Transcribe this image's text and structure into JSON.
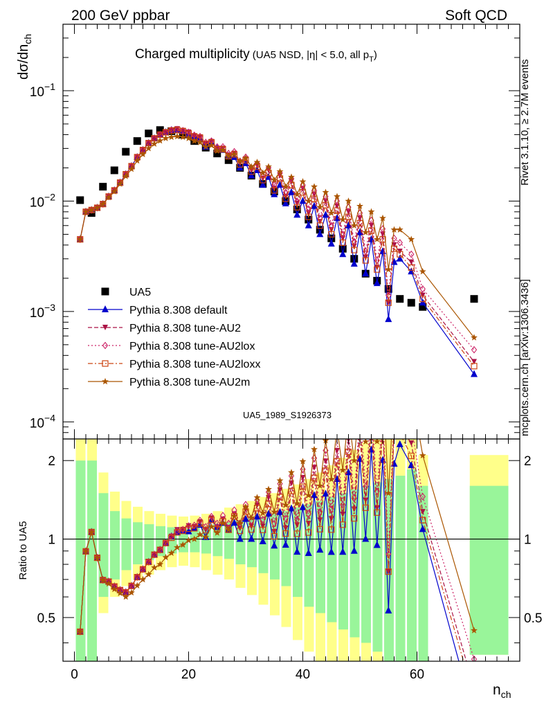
{
  "header": {
    "left": "200 GeV ppbar",
    "right": "Soft QCD",
    "side_top": "Rivet 3.1.10, ≥ 2.7M events",
    "side_bottom": "mcplots.cern.ch [arXiv:1306.3436]",
    "watermark": "UA5_1989_S1926373"
  },
  "chart_data": [
    {
      "type": "scatter",
      "title": "Charged multiplicity",
      "subtitle": "(UA5 NSD, |η| < 5.0, all p",
      "subtitle_sub": "T",
      "subtitle_end": ")",
      "ylabel": "dσ/dn",
      "ylabel_sub": "ch",
      "ylog": true,
      "ylim": [
        7e-05,
        0.4
      ],
      "xlim": [
        -2,
        78
      ],
      "y_ticks": [
        {
          "v": 0.0001,
          "base": "10",
          "exp": "−4"
        },
        {
          "v": 0.001,
          "base": "10",
          "exp": "−3"
        },
        {
          "v": 0.01,
          "base": "10",
          "exp": "−2"
        },
        {
          "v": 0.1,
          "base": "10",
          "exp": "−1"
        }
      ],
      "legend_position": "lower-left",
      "series": [
        {
          "name": "UA5",
          "color": "#000000",
          "marker": "square",
          "line": "none",
          "x": [
            1,
            3,
            5,
            7,
            9,
            11,
            13,
            15,
            17,
            19,
            21,
            23,
            25,
            27,
            29,
            31,
            33,
            35,
            37,
            39,
            41,
            43,
            45,
            47,
            49,
            51,
            53,
            55,
            57,
            59,
            61,
            70
          ],
          "y": [
            0.0102,
            0.0078,
            0.0135,
            0.019,
            0.028,
            0.035,
            0.041,
            0.044,
            0.043,
            0.04,
            0.035,
            0.0305,
            0.027,
            0.0235,
            0.02,
            0.017,
            0.0143,
            0.0122,
            0.01,
            0.0084,
            0.0068,
            0.0055,
            0.0046,
            0.0037,
            0.003,
            0.0022,
            0.0019,
            0.0016,
            0.0013,
            0.0012,
            0.0011,
            0.0013
          ]
        },
        {
          "name": "Pythia 8.308 default",
          "color": "#0000cc",
          "marker": "triangle-up",
          "line": "solid",
          "x": [
            1,
            2,
            3,
            4,
            5,
            6,
            7,
            8,
            9,
            10,
            11,
            12,
            13,
            14,
            15,
            16,
            17,
            18,
            19,
            20,
            21,
            22,
            23,
            24,
            25,
            26,
            27,
            28,
            29,
            30,
            31,
            32,
            33,
            34,
            35,
            36,
            37,
            38,
            39,
            40,
            41,
            42,
            43,
            44,
            45,
            46,
            47,
            48,
            49,
            50,
            51,
            52,
            53,
            54,
            55,
            56,
            57,
            59,
            61,
            70
          ],
          "y": [
            0.0045,
            0.008,
            0.0083,
            0.0087,
            0.0094,
            0.011,
            0.0125,
            0.0147,
            0.0175,
            0.0207,
            0.025,
            0.029,
            0.0335,
            0.037,
            0.04,
            0.042,
            0.044,
            0.044,
            0.043,
            0.04,
            0.0385,
            0.037,
            0.031,
            0.034,
            0.03,
            0.029,
            0.0255,
            0.025,
            0.02,
            0.022,
            0.017,
            0.019,
            0.014,
            0.0165,
            0.0115,
            0.014,
            0.0095,
            0.012,
            0.0075,
            0.01,
            0.006,
            0.009,
            0.005,
            0.0075,
            0.0041,
            0.007,
            0.0033,
            0.006,
            0.0027,
            0.0052,
            0.0022,
            0.0045,
            0.0018,
            0.0035,
            0.00085,
            0.0028,
            0.003,
            0.0023,
            0.0012,
            0.00027
          ]
        },
        {
          "name": "Pythia 8.308 tune-AU2",
          "color": "#aa1144",
          "marker": "triangle-down",
          "line": "dashed",
          "x": [
            1,
            2,
            3,
            4,
            5,
            6,
            7,
            8,
            9,
            10,
            11,
            12,
            13,
            14,
            15,
            16,
            17,
            18,
            19,
            20,
            21,
            22,
            23,
            24,
            25,
            26,
            27,
            28,
            29,
            30,
            31,
            32,
            33,
            34,
            35,
            36,
            37,
            38,
            39,
            40,
            41,
            42,
            43,
            44,
            45,
            46,
            47,
            48,
            49,
            50,
            51,
            52,
            53,
            54,
            55,
            56,
            57,
            59,
            61,
            70
          ],
          "y": [
            0.0045,
            0.008,
            0.0083,
            0.0087,
            0.0094,
            0.011,
            0.0125,
            0.0147,
            0.0175,
            0.0207,
            0.025,
            0.029,
            0.0335,
            0.037,
            0.04,
            0.042,
            0.044,
            0.045,
            0.0435,
            0.042,
            0.039,
            0.038,
            0.033,
            0.0345,
            0.03,
            0.03,
            0.026,
            0.027,
            0.022,
            0.024,
            0.019,
            0.021,
            0.016,
            0.019,
            0.013,
            0.017,
            0.011,
            0.015,
            0.0095,
            0.013,
            0.0078,
            0.0115,
            0.0065,
            0.01,
            0.0055,
            0.009,
            0.0046,
            0.008,
            0.0039,
            0.007,
            0.0031,
            0.006,
            0.0025,
            0.005,
            0.0012,
            0.004,
            0.0035,
            0.0028,
            0.0014,
            0.00035
          ]
        },
        {
          "name": "Pythia 8.308 tune-AU2lox",
          "color": "#cc2266",
          "marker": "diamond",
          "line": "dotted",
          "x": [
            1,
            2,
            3,
            4,
            5,
            6,
            7,
            8,
            9,
            10,
            11,
            12,
            13,
            14,
            15,
            16,
            17,
            18,
            19,
            20,
            21,
            22,
            23,
            24,
            25,
            26,
            27,
            28,
            29,
            30,
            31,
            32,
            33,
            34,
            35,
            36,
            37,
            38,
            39,
            40,
            41,
            42,
            43,
            44,
            45,
            46,
            47,
            48,
            49,
            50,
            51,
            52,
            53,
            54,
            55,
            56,
            57,
            59,
            61,
            70
          ],
          "y": [
            0.0045,
            0.008,
            0.0083,
            0.0087,
            0.0094,
            0.011,
            0.0125,
            0.0147,
            0.0175,
            0.0207,
            0.025,
            0.029,
            0.0335,
            0.037,
            0.04,
            0.042,
            0.044,
            0.0445,
            0.0435,
            0.042,
            0.0395,
            0.0385,
            0.034,
            0.035,
            0.031,
            0.031,
            0.027,
            0.028,
            0.023,
            0.025,
            0.02,
            0.022,
            0.017,
            0.02,
            0.014,
            0.018,
            0.012,
            0.016,
            0.01,
            0.014,
            0.0085,
            0.0125,
            0.007,
            0.011,
            0.006,
            0.01,
            0.005,
            0.0088,
            0.0043,
            0.0078,
            0.0035,
            0.0067,
            0.0029,
            0.0056,
            0.0014,
            0.0046,
            0.0042,
            0.0033,
            0.0016,
            0.00045
          ]
        },
        {
          "name": "Pythia 8.308 tune-AU2loxx",
          "color": "#cc4411",
          "marker": "open-square",
          "line": "dashdot",
          "x": [
            1,
            2,
            3,
            4,
            5,
            6,
            7,
            8,
            9,
            10,
            11,
            12,
            13,
            14,
            15,
            16,
            17,
            18,
            19,
            20,
            21,
            22,
            23,
            24,
            25,
            26,
            27,
            28,
            29,
            30,
            31,
            32,
            33,
            34,
            35,
            36,
            37,
            38,
            39,
            40,
            41,
            42,
            43,
            44,
            45,
            46,
            47,
            48,
            49,
            50,
            51,
            52,
            53,
            54,
            55,
            56,
            57,
            59,
            61,
            70
          ],
          "y": [
            0.0045,
            0.008,
            0.0083,
            0.0087,
            0.0094,
            0.011,
            0.0125,
            0.0147,
            0.0175,
            0.0207,
            0.025,
            0.029,
            0.0335,
            0.037,
            0.04,
            0.042,
            0.0435,
            0.044,
            0.043,
            0.041,
            0.0385,
            0.0375,
            0.033,
            0.034,
            0.0295,
            0.0295,
            0.0255,
            0.0265,
            0.0215,
            0.0235,
            0.0185,
            0.0205,
            0.0155,
            0.018,
            0.0125,
            0.016,
            0.0105,
            0.014,
            0.0088,
            0.012,
            0.0072,
            0.0105,
            0.006,
            0.0092,
            0.005,
            0.0082,
            0.0042,
            0.0072,
            0.0036,
            0.0063,
            0.0029,
            0.0054,
            0.0024,
            0.0045,
            0.0012,
            0.0037,
            0.0033,
            0.0025,
            0.0013,
            0.00032
          ]
        },
        {
          "name": "Pythia 8.308 tune-AU2m",
          "color": "#aa5500",
          "marker": "star",
          "line": "solid",
          "x": [
            1,
            2,
            3,
            4,
            5,
            6,
            7,
            8,
            9,
            10,
            11,
            12,
            13,
            14,
            15,
            16,
            17,
            18,
            19,
            20,
            21,
            22,
            23,
            24,
            25,
            26,
            27,
            28,
            29,
            30,
            31,
            32,
            33,
            34,
            35,
            36,
            37,
            38,
            39,
            40,
            41,
            42,
            43,
            44,
            45,
            46,
            47,
            48,
            49,
            50,
            51,
            52,
            53,
            54,
            55,
            56,
            57,
            59,
            61,
            70
          ],
          "y": [
            0.0045,
            0.008,
            0.0083,
            0.0087,
            0.0094,
            0.0108,
            0.0122,
            0.0143,
            0.0168,
            0.0195,
            0.0232,
            0.0265,
            0.03,
            0.033,
            0.0352,
            0.037,
            0.038,
            0.0385,
            0.038,
            0.037,
            0.035,
            0.034,
            0.031,
            0.032,
            0.0285,
            0.029,
            0.0255,
            0.0265,
            0.023,
            0.0245,
            0.0205,
            0.0225,
            0.018,
            0.0205,
            0.0155,
            0.0185,
            0.0135,
            0.0165,
            0.0115,
            0.015,
            0.01,
            0.0135,
            0.0088,
            0.012,
            0.0078,
            0.011,
            0.0068,
            0.01,
            0.006,
            0.009,
            0.0052,
            0.008,
            0.0045,
            0.007,
            0.0024,
            0.0055,
            0.0055,
            0.0045,
            0.0023,
            0.00058
          ]
        }
      ]
    },
    {
      "type": "line",
      "ylabel": "Ratio to UA5",
      "xlabel": "n",
      "xlabel_sub": "ch",
      "xlim": [
        -2,
        78
      ],
      "ylim": [
        0.34,
        2.42
      ],
      "ylog": true,
      "x_ticks": [
        0,
        20,
        40,
        60
      ],
      "y_ticks": [
        0.5,
        1,
        2
      ],
      "y_tick_labels": [
        "0.5",
        "1",
        "2"
      ],
      "bands": {
        "x": [
          1,
          3,
          5,
          7,
          9,
          11,
          13,
          15,
          17,
          19,
          21,
          23,
          25,
          27,
          29,
          31,
          33,
          35,
          37,
          39,
          41,
          43,
          45,
          47,
          49,
          51,
          53,
          55,
          57,
          59,
          61,
          70
        ],
        "green_lo": [
          0.34,
          0.34,
          0.6,
          0.7,
          0.76,
          0.8,
          0.83,
          0.86,
          0.88,
          0.89,
          0.89,
          0.88,
          0.86,
          0.84,
          0.8,
          0.78,
          0.74,
          0.7,
          0.66,
          0.6,
          0.55,
          0.52,
          0.48,
          0.45,
          0.42,
          0.4,
          0.37,
          0.34,
          0.34,
          0.34,
          0.34,
          0.36
        ],
        "green_hi": [
          2.0,
          2.0,
          1.5,
          1.28,
          1.2,
          1.16,
          1.14,
          1.12,
          1.11,
          1.1,
          1.11,
          1.12,
          1.14,
          1.16,
          1.18,
          1.2,
          1.22,
          1.25,
          1.28,
          1.32,
          1.36,
          1.4,
          1.45,
          1.5,
          1.55,
          1.6,
          1.65,
          1.7,
          1.75,
          1.85,
          1.6,
          1.6
        ],
        "yellow_lo": [
          0.34,
          0.34,
          0.52,
          0.6,
          0.66,
          0.7,
          0.73,
          0.76,
          0.78,
          0.79,
          0.78,
          0.76,
          0.73,
          0.7,
          0.65,
          0.61,
          0.56,
          0.51,
          0.46,
          0.41,
          0.37,
          0.34,
          0.34,
          0.34,
          0.34,
          0.34,
          0.34,
          0.34,
          0.34,
          0.34,
          0.34,
          0.36
        ],
        "yellow_hi": [
          2.42,
          2.42,
          1.8,
          1.52,
          1.4,
          1.33,
          1.28,
          1.25,
          1.23,
          1.22,
          1.23,
          1.25,
          1.28,
          1.32,
          1.36,
          1.4,
          1.45,
          1.5,
          1.56,
          1.62,
          1.7,
          1.8,
          1.92,
          2.05,
          2.2,
          2.35,
          2.42,
          2.42,
          2.42,
          2.42,
          2.1,
          2.1
        ]
      }
    }
  ]
}
